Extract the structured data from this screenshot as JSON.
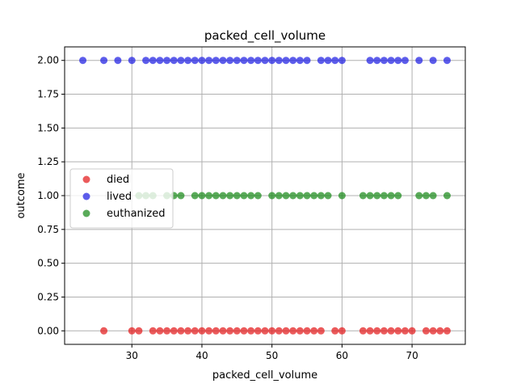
{
  "chart_data": {
    "type": "scatter",
    "title": "packed_cell_volume",
    "xlabel": "packed_cell_volume",
    "ylabel": "outcome",
    "xlim": [
      20.4,
      77.6
    ],
    "ylim": [
      -0.1,
      2.1
    ],
    "xticks": [
      "30",
      "40",
      "50",
      "60",
      "70"
    ],
    "yticks": [
      "0.00",
      "0.25",
      "0.50",
      "0.75",
      "1.00",
      "1.25",
      "1.50",
      "1.75",
      "2.00"
    ],
    "grid": true,
    "legend_position": "center-left",
    "series": [
      {
        "name": "died",
        "color": "#e31a1c",
        "y": 0,
        "x": [
          26,
          30,
          31,
          33,
          34,
          35,
          36,
          37,
          38,
          39,
          40,
          41,
          42,
          43,
          44,
          45,
          46,
          47,
          48,
          49,
          50,
          51,
          52,
          53,
          54,
          55,
          56,
          57,
          59,
          60,
          63,
          64,
          65,
          66,
          67,
          68,
          69,
          70,
          72,
          73,
          74,
          75
        ]
      },
      {
        "name": "lived",
        "color": "#1f1fe3",
        "y": 2,
        "x": [
          23,
          26,
          28,
          30,
          32,
          33,
          34,
          35,
          36,
          37,
          38,
          39,
          40,
          41,
          42,
          43,
          44,
          45,
          46,
          47,
          48,
          49,
          50,
          51,
          52,
          53,
          54,
          55,
          57,
          58,
          59,
          60,
          64,
          65,
          66,
          67,
          68,
          69,
          71,
          73,
          75
        ]
      },
      {
        "name": "euthanized",
        "color": "#1a8a1a",
        "y": 1,
        "x": [
          31,
          32,
          33,
          35,
          36,
          37,
          39,
          40,
          41,
          42,
          43,
          44,
          45,
          46,
          47,
          48,
          50,
          51,
          52,
          53,
          54,
          55,
          56,
          57,
          58,
          60,
          63,
          64,
          65,
          66,
          67,
          68,
          71,
          72,
          73,
          75
        ]
      }
    ]
  }
}
